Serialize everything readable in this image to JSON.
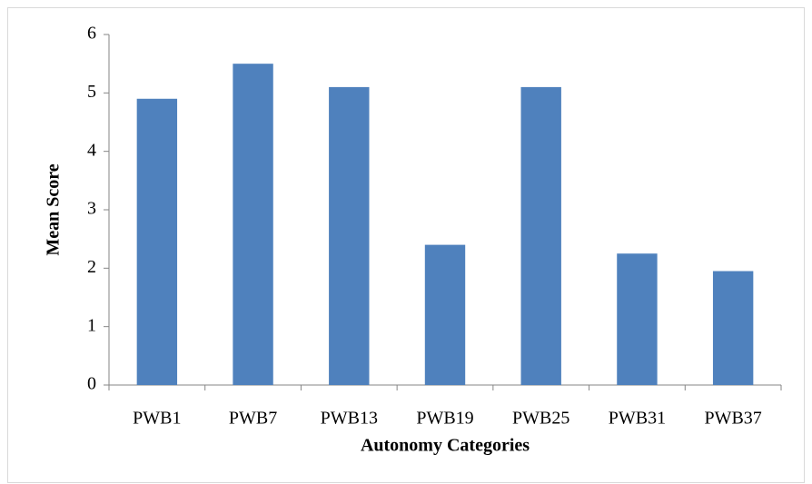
{
  "chart_data": {
    "type": "bar",
    "x_label": "Autonomy Categories",
    "y_label": "Mean Score",
    "categories": [
      "PWB1",
      "PWB7",
      "PWB13",
      "PWB19",
      "PWB25",
      "PWB31",
      "PWB37"
    ],
    "values": [
      4.9,
      5.5,
      5.1,
      2.4,
      5.1,
      2.25,
      1.95
    ],
    "color": "#4f81bd",
    "ylim": [
      0,
      6
    ],
    "yticks": [
      0,
      1,
      2,
      3,
      4,
      5,
      6
    ],
    "grid": false
  }
}
